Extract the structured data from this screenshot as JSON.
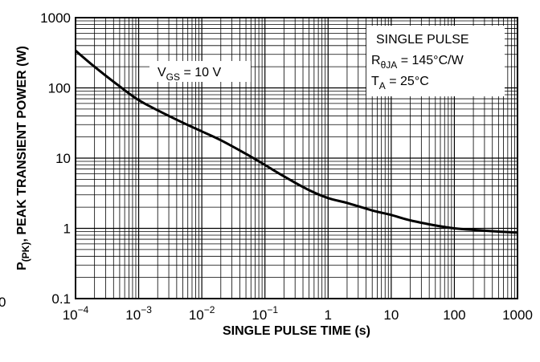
{
  "chart_data": {
    "type": "line",
    "title": "",
    "xlabel": "SINGLE PULSE TIME (s)",
    "ylabel": {
      "main": "P",
      "sub": "(PK)",
      "rest": ", PEAK TRANSIENT POWER (W)"
    },
    "x_scale": "log",
    "y_scale": "log",
    "xlim": [
      0.0001,
      1000
    ],
    "ylim": [
      0.1,
      1000
    ],
    "grid": true,
    "x_ticks": [
      {
        "value": 0.0001,
        "base": "10",
        "exp": "−4"
      },
      {
        "value": 0.001,
        "base": "10",
        "exp": "−3"
      },
      {
        "value": 0.01,
        "base": "10",
        "exp": "−2"
      },
      {
        "value": 0.1,
        "base": "10",
        "exp": "−1"
      },
      {
        "value": 1,
        "base": "1",
        "exp": ""
      },
      {
        "value": 10,
        "base": "10",
        "exp": ""
      },
      {
        "value": 100,
        "base": "100",
        "exp": ""
      },
      {
        "value": 1000,
        "base": "1000",
        "exp": ""
      }
    ],
    "y_ticks": [
      {
        "value": 0.1,
        "label": "0.1"
      },
      {
        "value": 1,
        "label": "1"
      },
      {
        "value": 10,
        "label": "10"
      },
      {
        "value": 100,
        "label": "100"
      },
      {
        "value": 1000,
        "label": "1000"
      }
    ],
    "stray_label": "0",
    "series": [
      {
        "x": [
          0.0001,
          0.0002,
          0.0005,
          0.001,
          0.002,
          0.005,
          0.01,
          0.02,
          0.05,
          0.1,
          0.2,
          0.5,
          1,
          2,
          5,
          10,
          20,
          50,
          100,
          200,
          500,
          1000
        ],
        "y": [
          340,
          200,
          105,
          67,
          48,
          32,
          24,
          18,
          11.5,
          8,
          5.5,
          3.5,
          2.7,
          2.3,
          1.8,
          1.55,
          1.3,
          1.1,
          1.0,
          0.95,
          0.9,
          0.87
        ]
      }
    ],
    "annotations": {
      "vgs": {
        "main": "V",
        "sub": "GS",
        "rest": " = 10 V"
      },
      "box": {
        "line1": "SINGLE PULSE",
        "line2": {
          "main": "R",
          "sub": "θJA",
          "rest": " = 145°C/W"
        },
        "line3": {
          "main": "T",
          "sub": "A",
          "rest": " = 25°C"
        }
      }
    }
  }
}
